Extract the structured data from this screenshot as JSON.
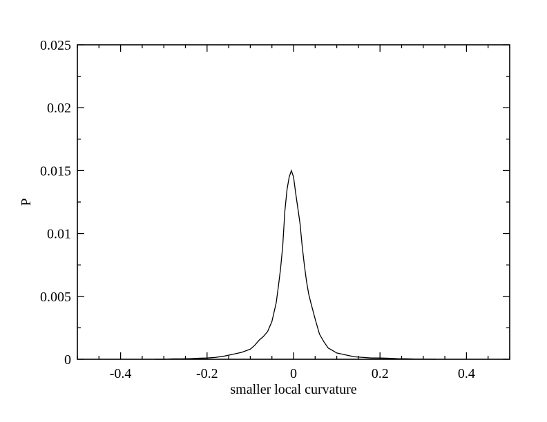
{
  "chart_data": {
    "type": "line",
    "title": "",
    "xlabel": "smaller local curvature",
    "ylabel": "P",
    "xlim": [
      -0.5,
      0.5
    ],
    "ylim": [
      0,
      0.025
    ],
    "grid": false,
    "x_ticks": [
      -0.4,
      -0.2,
      0,
      0.2,
      0.4
    ],
    "x_tick_labels": [
      "-0.4",
      "-0.2",
      "0",
      "0.2",
      "0.4"
    ],
    "y_ticks": [
      0,
      0.005,
      0.01,
      0.015,
      0.02,
      0.025
    ],
    "y_tick_labels": [
      "0",
      "0.005",
      "0.01",
      "0.015",
      "0.02",
      "0.025"
    ],
    "series": [
      {
        "color": "#000000",
        "x": [
          -0.32,
          -0.3,
          -0.28,
          -0.26,
          -0.24,
          -0.22,
          -0.2,
          -0.18,
          -0.16,
          -0.14,
          -0.12,
          -0.1,
          -0.09,
          -0.08,
          -0.07,
          -0.06,
          -0.05,
          -0.04,
          -0.035,
          -0.03,
          -0.025,
          -0.02,
          -0.015,
          -0.01,
          -0.005,
          0.0,
          0.005,
          0.01,
          0.015,
          0.02,
          0.025,
          0.03,
          0.035,
          0.04,
          0.05,
          0.06,
          0.07,
          0.08,
          0.1,
          0.12,
          0.14,
          0.16,
          0.18,
          0.2,
          0.22,
          0.24,
          0.26,
          0.28,
          0.3,
          0.33
        ],
        "y": [
          0.0,
          0.0,
          3e-05,
          3e-05,
          5e-05,
          8e-05,
          0.0001,
          0.00015,
          0.00025,
          0.0004,
          0.00055,
          0.0008,
          0.0011,
          0.0015,
          0.0018,
          0.0022,
          0.003,
          0.0045,
          0.0058,
          0.0072,
          0.009,
          0.0118,
          0.0135,
          0.0145,
          0.015,
          0.0145,
          0.0132,
          0.012,
          0.0108,
          0.009,
          0.0075,
          0.0062,
          0.0052,
          0.0045,
          0.0032,
          0.002,
          0.0014,
          0.0009,
          0.0005,
          0.00035,
          0.0002,
          0.00015,
          0.0001,
          0.0001,
          8e-05,
          5e-05,
          4e-05,
          2e-05,
          1e-05,
          0.0
        ]
      }
    ]
  }
}
